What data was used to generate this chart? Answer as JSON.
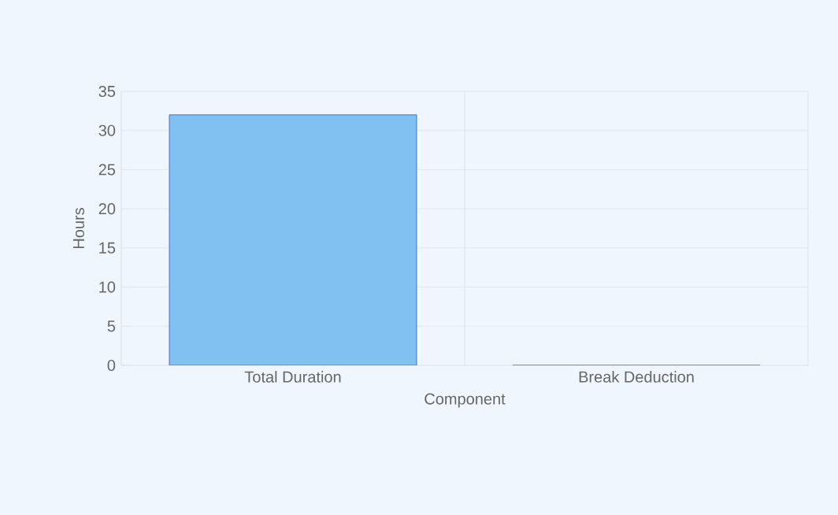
{
  "chart_data": {
    "type": "bar",
    "xlabel": "Component",
    "ylabel": "Hours",
    "categories": [
      "Total Duration",
      "Break Deduction"
    ],
    "values": [
      32,
      0
    ],
    "color": "#80c1f1",
    "ylim": [
      0,
      35
    ],
    "yticks": [
      0,
      5,
      10,
      15,
      20,
      25,
      30,
      35
    ],
    "grid": true
  }
}
